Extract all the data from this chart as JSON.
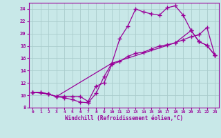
{
  "xlabel": "Windchill (Refroidissement éolien,°C)",
  "background_color": "#c8e8e8",
  "line_color": "#990099",
  "grid_color": "#aacccc",
  "xlim": [
    -0.5,
    23.5
  ],
  "ylim": [
    8,
    25
  ],
  "xticks": [
    0,
    1,
    2,
    3,
    4,
    5,
    6,
    7,
    8,
    9,
    10,
    11,
    12,
    13,
    14,
    15,
    16,
    17,
    18,
    19,
    20,
    21,
    22,
    23
  ],
  "yticks": [
    8,
    10,
    12,
    14,
    16,
    18,
    20,
    22,
    24
  ],
  "line1_x": [
    0,
    1,
    2,
    3,
    4,
    5,
    6,
    7,
    8,
    9,
    10,
    11,
    12,
    13,
    14,
    15,
    16,
    17,
    18,
    19,
    20,
    21,
    22,
    23
  ],
  "line1_y": [
    10.5,
    10.5,
    10.2,
    9.8,
    9.6,
    9.3,
    8.9,
    8.8,
    10.3,
    13.0,
    15.2,
    19.2,
    21.2,
    24.0,
    23.5,
    23.2,
    23.0,
    24.2,
    24.5,
    23.0,
    20.5,
    18.7,
    18.1,
    16.5
  ],
  "line2_x": [
    0,
    1,
    2,
    3,
    4,
    5,
    6,
    7,
    8,
    9,
    10,
    11,
    12,
    13,
    14,
    15,
    16,
    17,
    18,
    19,
    20,
    21,
    22,
    23
  ],
  "line2_y": [
    10.5,
    10.5,
    10.2,
    9.8,
    9.8,
    9.8,
    9.8,
    9.0,
    11.5,
    12.0,
    15.0,
    15.5,
    16.3,
    16.8,
    17.0,
    17.5,
    18.0,
    18.2,
    18.5,
    19.0,
    19.5,
    19.8,
    21.0,
    16.5
  ],
  "line3_x": [
    0,
    2,
    3,
    10,
    18,
    20,
    21,
    22,
    23
  ],
  "line3_y": [
    10.5,
    10.2,
    9.8,
    15.2,
    18.5,
    20.5,
    18.7,
    18.1,
    16.5
  ]
}
